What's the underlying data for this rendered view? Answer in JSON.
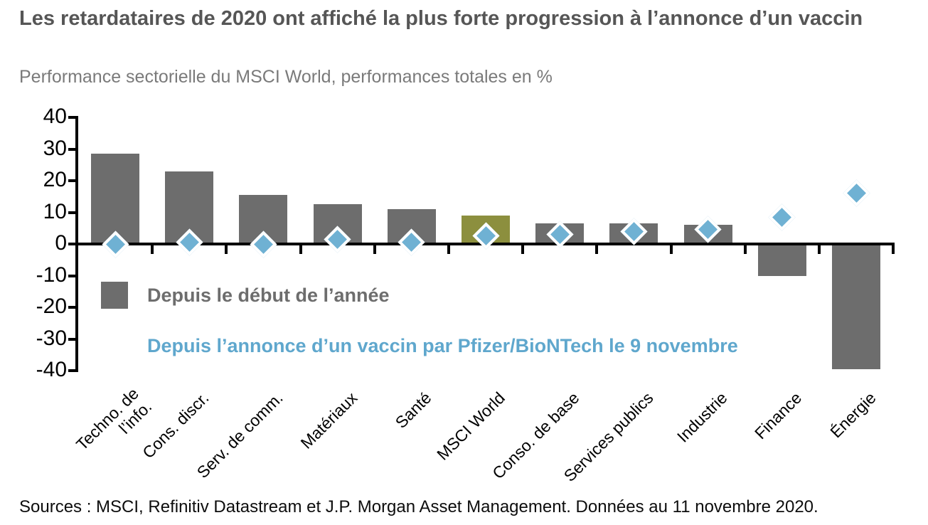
{
  "header": {
    "title": "Les retardataires de 2020 ont affiché la plus forte progression à l’annonce d’un vaccin",
    "subtitle": "Performance sectorielle du MSCI World, performances totales en %"
  },
  "legend": {
    "ytd_label": "Depuis le début de l’année",
    "vaccine_label": "Depuis l’annonce d’un vaccin par Pfizer/BioNTech le 9 novembre"
  },
  "footer": {
    "source": "Sources : MSCI, Refinitiv Datastream et J.P. Morgan Asset Management. Données au 11 novembre 2020."
  },
  "colors": {
    "bar": "#6d6d6d",
    "highlight_bar": "#8c8f3e",
    "diamond_fill": "#6fb1d3",
    "diamond_border": "#ffffff",
    "legend_gray": "#6d6d6d",
    "legend_blue": "#5fa7cd",
    "axis": "#000000",
    "title": "#565656",
    "subtitle": "#7a7a7a"
  },
  "chart_data": {
    "type": "bar",
    "title": "Les retardataires de 2020 ont affiché la plus forte progression à l’annonce d’un vaccin",
    "subtitle": "Performance sectorielle du MSCI World, performances totales en %",
    "unit": "%",
    "categories": [
      "Techno. de\nl’info.",
      "Cons. discr.",
      "Serv. de comm.",
      "Matériaux",
      "Santé",
      "MSCI World",
      "Conso. de base",
      "Services publics",
      "Industrie",
      "Finance",
      "Énergie"
    ],
    "series": [
      {
        "name": "Depuis le début de l’année",
        "type": "bar",
        "values": [
          28.5,
          23,
          15.5,
          12.5,
          11,
          9,
          6.5,
          6.5,
          6,
          -10,
          -39.5
        ]
      },
      {
        "name": "Depuis l’annonce d’un vaccin par Pfizer/BioNTech le 9 novembre",
        "type": "scatter-diamond",
        "values": [
          0,
          0.5,
          0,
          1.5,
          0.5,
          2.5,
          3,
          4,
          4.5,
          8.5,
          16
        ]
      }
    ],
    "highlighted_category": "MSCI World",
    "highlight_index": 5,
    "ylim": [
      -40,
      40
    ],
    "y_ticks": [
      40,
      30,
      20,
      10,
      0,
      -10,
      -20,
      -30,
      -40
    ],
    "grid": false,
    "legend_position": "inside-lower-left",
    "x_labels_rotation_deg": 45
  }
}
